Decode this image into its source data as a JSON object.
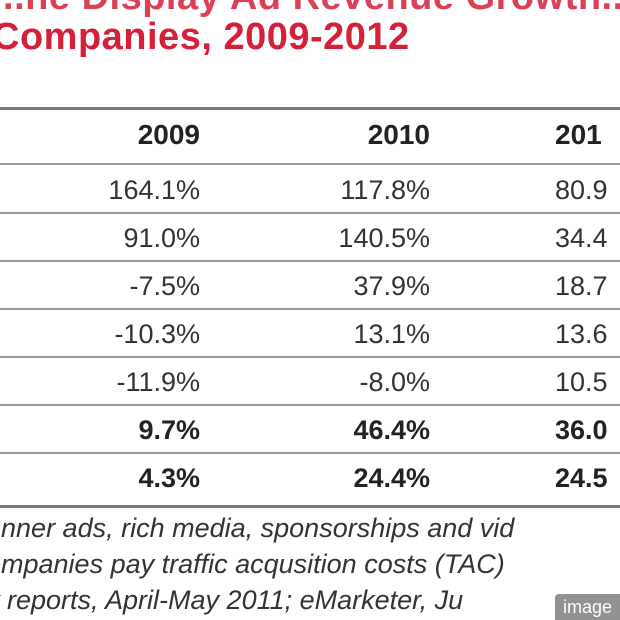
{
  "chart_data": {
    "type": "table",
    "title_line_1": "...ne Display Ad Revenue Growth...",
    "title_line_2": "Companies, 2009-2012",
    "columns": [
      "2009",
      "2010",
      "201"
    ],
    "rows": [
      {
        "values": [
          "164.1%",
          "117.8%",
          "80.9"
        ],
        "bold": false
      },
      {
        "values": [
          "91.0%",
          "140.5%",
          "34.4"
        ],
        "bold": false
      },
      {
        "values": [
          "-7.5%",
          "37.9%",
          "18.7"
        ],
        "bold": false
      },
      {
        "values": [
          "-10.3%",
          "13.1%",
          "13.6"
        ],
        "bold": false
      },
      {
        "values": [
          "-11.9%",
          "-8.0%",
          "10.5"
        ],
        "bold": false
      },
      {
        "values": [
          "9.7%",
          "46.4%",
          "36.0"
        ],
        "bold": true
      },
      {
        "values": [
          "4.3%",
          "24.4%",
          "24.5"
        ],
        "bold": true
      }
    ],
    "footnotes": [
      "anner ads, rich media, sponsorships and vid",
      "ompanies pay traffic acqusition costs (TAC)",
      "y reports, April-May 2011; eMarketer, Ju"
    ]
  },
  "badge": {
    "label": "image"
  }
}
